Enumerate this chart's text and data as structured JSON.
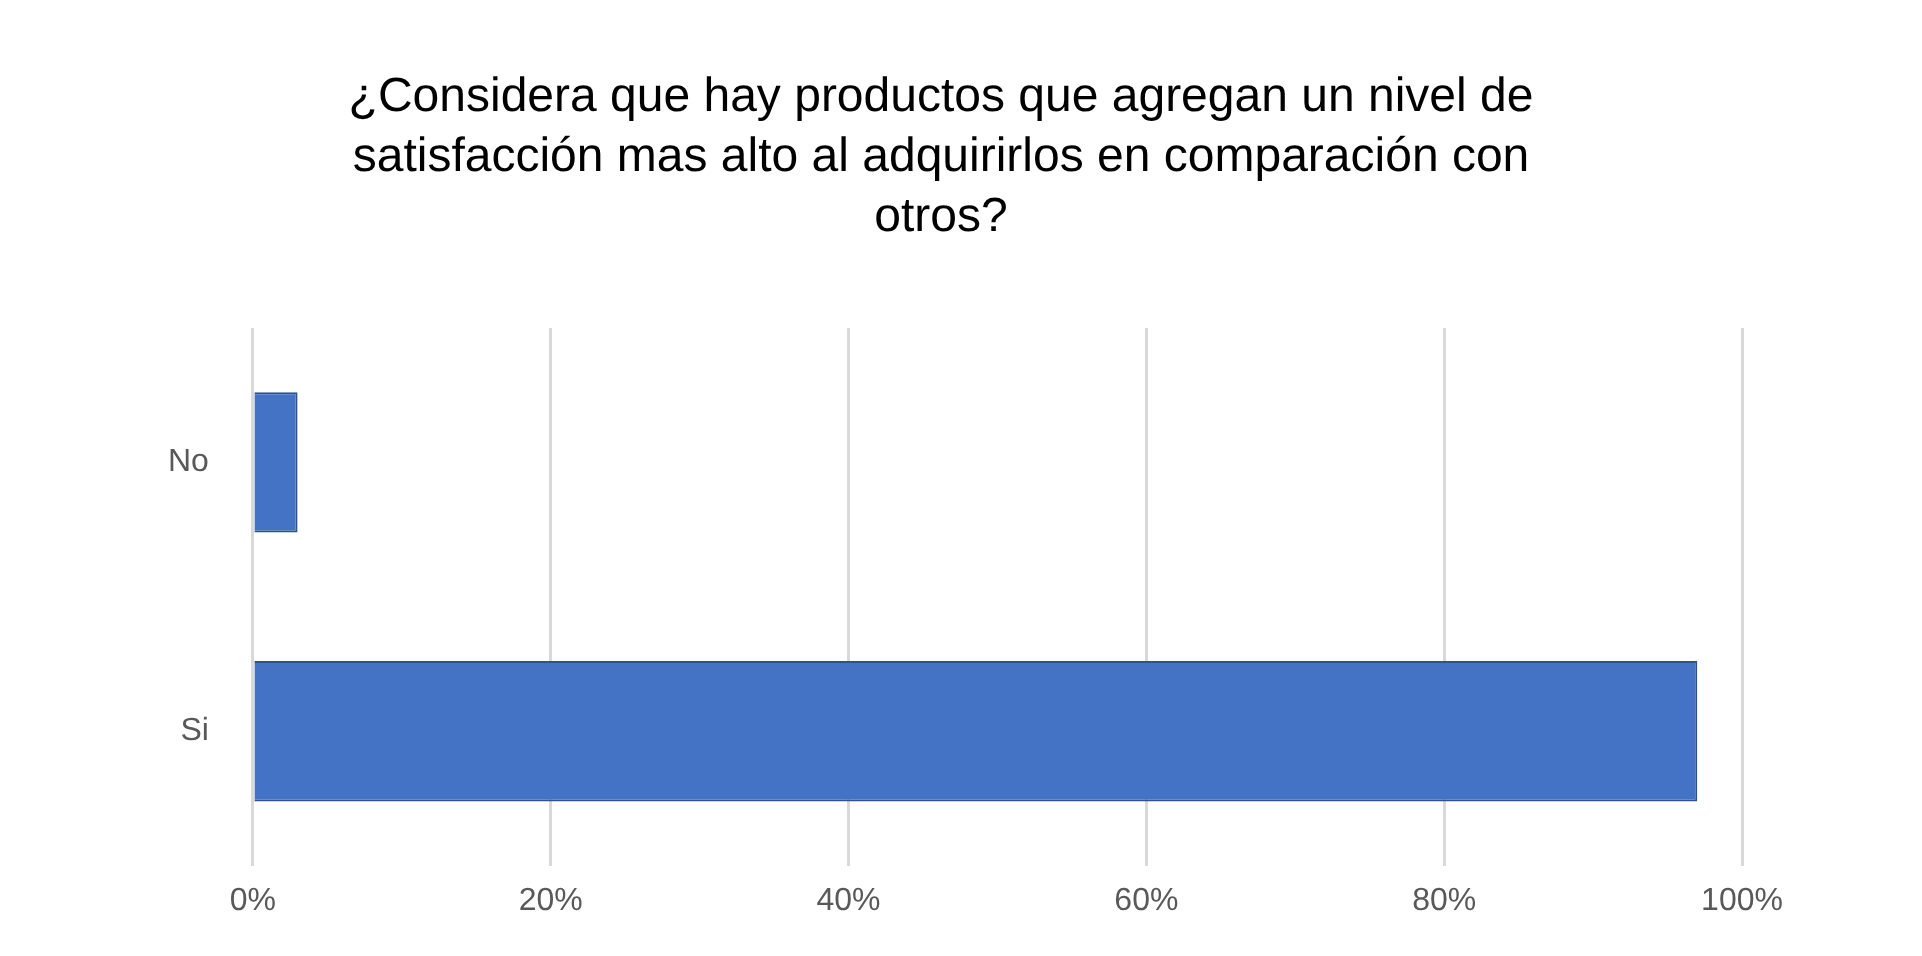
{
  "chart_data": {
    "type": "bar",
    "orientation": "horizontal",
    "title": "¿Considera que hay productos que agregan un nivel de satisfacción mas alto al adquirirlos en comparación con otros?",
    "categories": [
      "No",
      "Si"
    ],
    "values": [
      3,
      97
    ],
    "color": "#4472c4",
    "xlim": [
      0,
      100
    ],
    "xticks": [
      {
        "value": 0,
        "label": "0%"
      },
      {
        "value": 20,
        "label": "20%"
      },
      {
        "value": 40,
        "label": "40%"
      },
      {
        "value": 60,
        "label": "60%"
      },
      {
        "value": 80,
        "label": "80%"
      },
      {
        "value": 100,
        "label": "100%"
      }
    ],
    "grid": "x",
    "legend": false
  }
}
